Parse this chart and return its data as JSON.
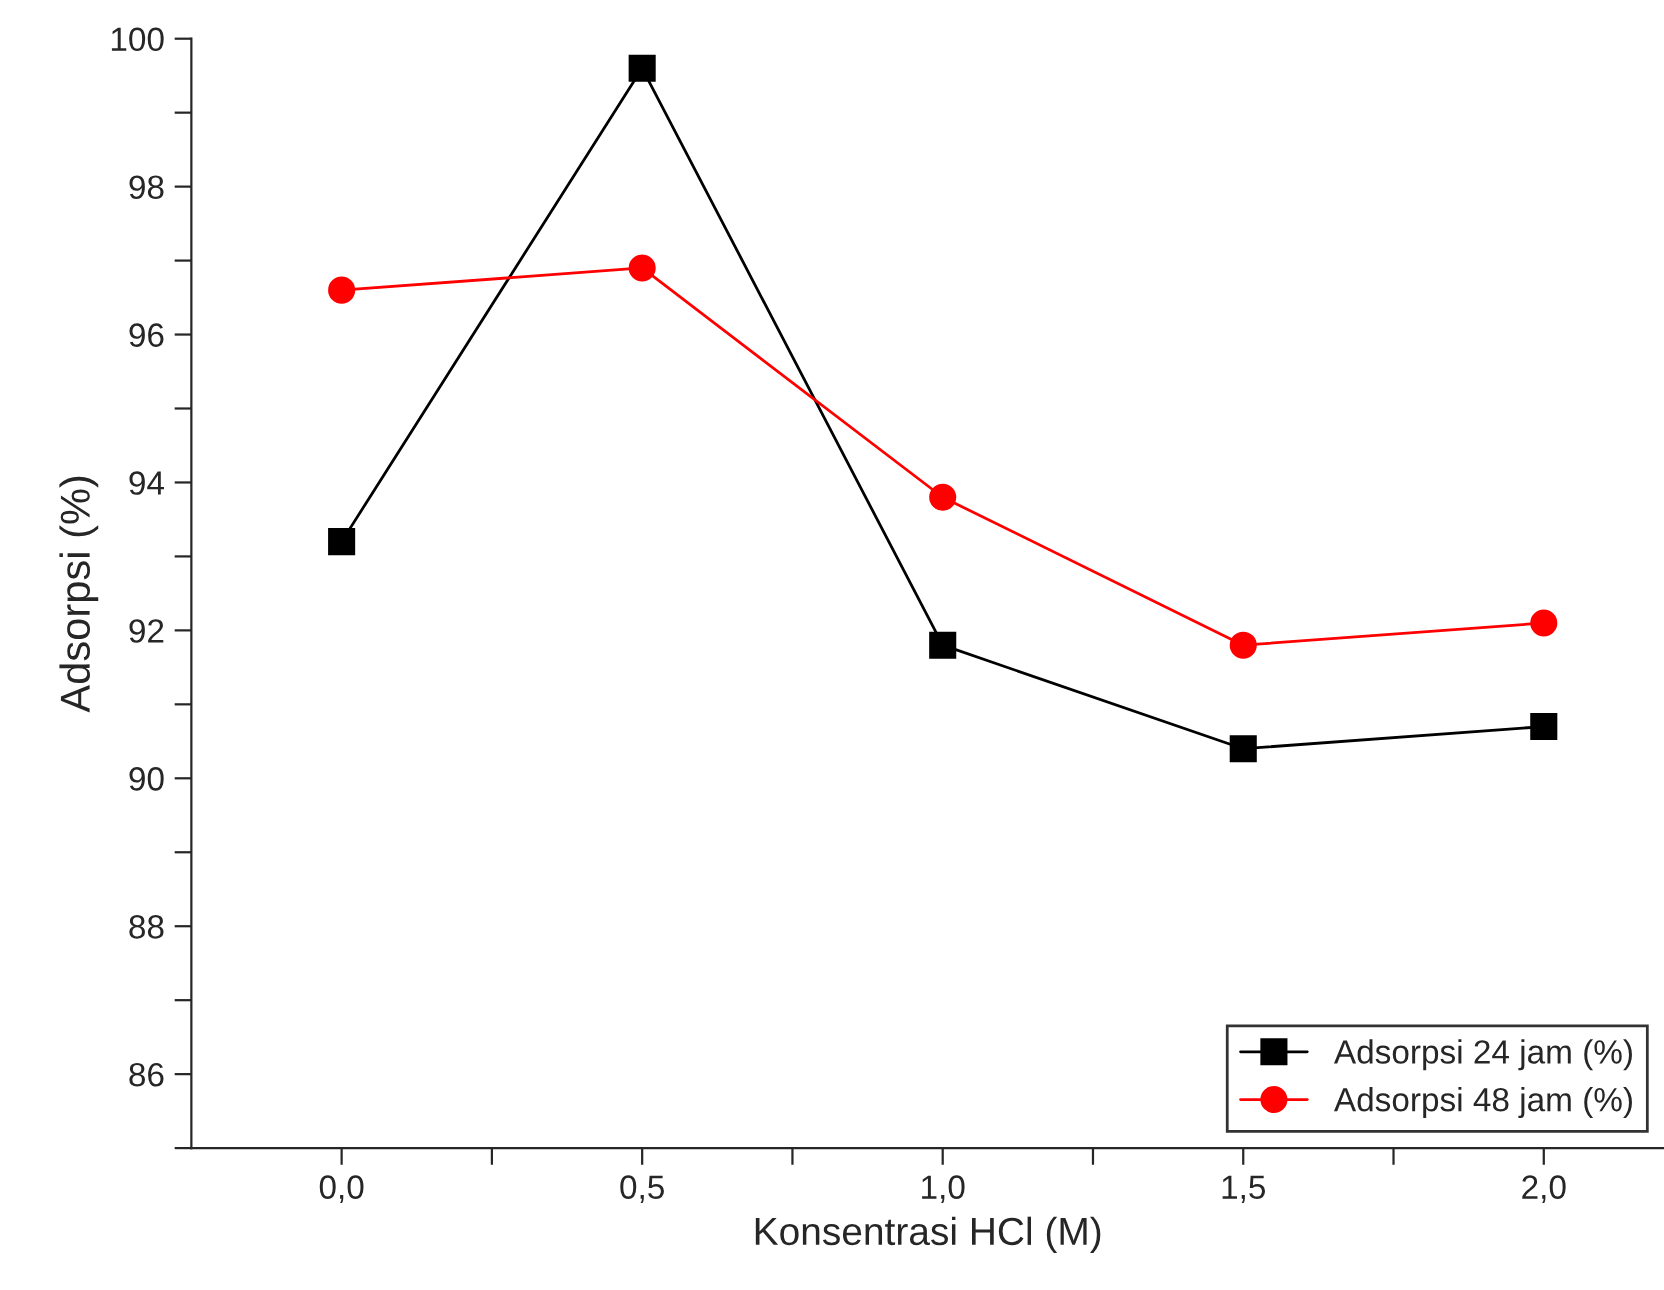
{
  "chart_data": {
    "type": "line",
    "xlabel": "Konsentrasi HCl (M)",
    "ylabel": "Adsorpsi (%)",
    "x": [
      0,
      0.5,
      1.0,
      1.5,
      2.0
    ],
    "series": [
      {
        "name": "Adsorpsi 24 jam (%)",
        "color": "#000000",
        "marker": "square",
        "values": [
          93.2,
          99.6,
          91.8,
          90.4,
          90.7
        ]
      },
      {
        "name": "Adsorpsi 48 jam (%)",
        "color": "#ff0000",
        "marker": "circle",
        "values": [
          96.6,
          96.9,
          93.8,
          91.8,
          92.1
        ]
      }
    ],
    "xlim": [
      -0.25,
      2.2
    ],
    "xticks": [
      {
        "value": 0,
        "label": "0,0"
      },
      {
        "value": 0.25,
        "label": null
      },
      {
        "value": 0.5,
        "label": "0,5"
      },
      {
        "value": 0.75,
        "label": null
      },
      {
        "value": 1.0,
        "label": "1,0"
      },
      {
        "value": 1.25,
        "label": null
      },
      {
        "value": 1.5,
        "label": "1,5"
      },
      {
        "value": 1.75,
        "label": null
      },
      {
        "value": 2.0,
        "label": "2,0"
      }
    ],
    "ylim": [
      85,
      100
    ],
    "yticks": [
      {
        "value": 85,
        "label": null
      },
      86,
      {
        "value": 87,
        "label": null
      },
      88,
      {
        "value": 89,
        "label": null
      },
      90,
      {
        "value": 91,
        "label": null
      },
      92,
      {
        "value": 93,
        "label": null
      },
      94,
      {
        "value": 95,
        "label": null
      },
      96,
      {
        "value": 97,
        "label": null
      },
      98,
      {
        "value": 99,
        "label": null
      },
      100
    ],
    "grid": false,
    "legend": "bottom right",
    "line_style": "solid"
  }
}
